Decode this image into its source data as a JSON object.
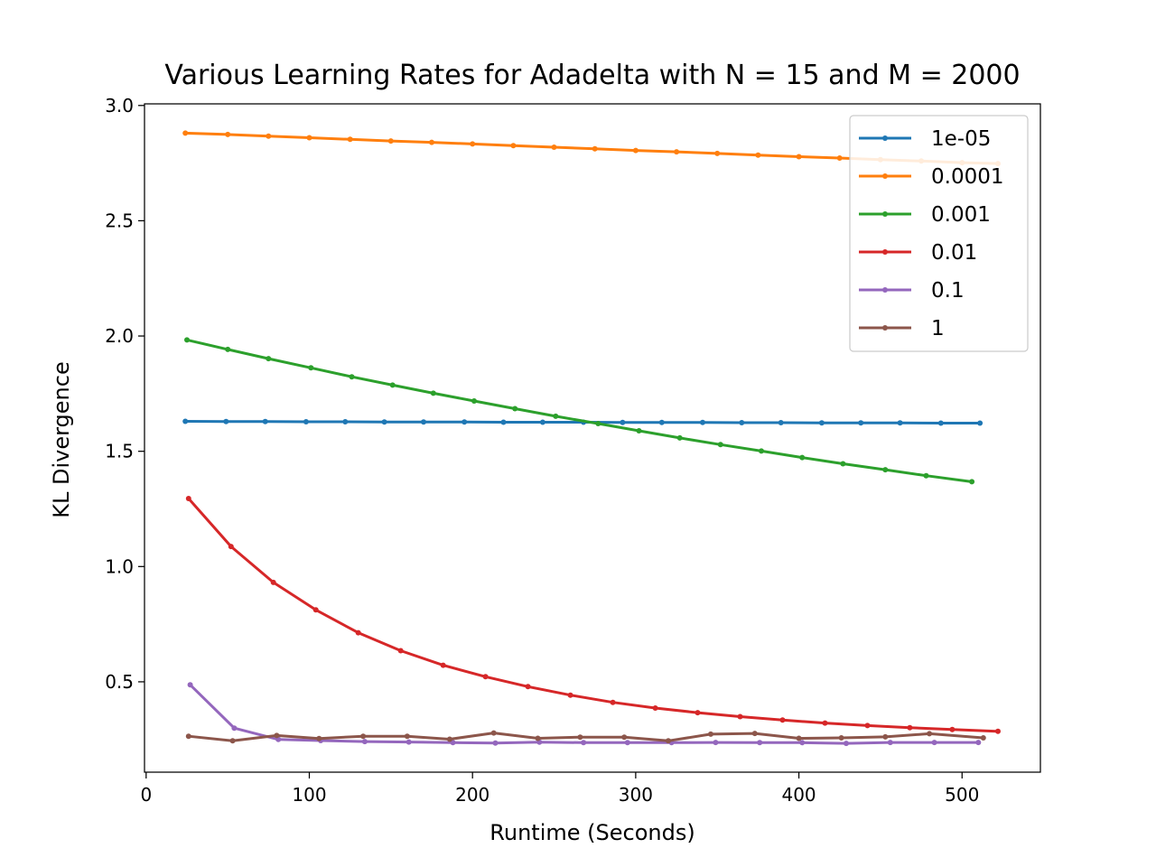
{
  "chart_data": {
    "type": "line",
    "title": "Various Learning Rates for Adadelta with N = 15 and M = 2000",
    "xlabel": "Runtime (Seconds)",
    "ylabel": "KL Divergence",
    "xlim": [
      -1,
      548
    ],
    "ylim": [
      0.108,
      3.007
    ],
    "xticks": [
      "0",
      "100",
      "200",
      "300",
      "400",
      "500"
    ],
    "yticks": [
      "0.5",
      "1.0",
      "1.5",
      "2.0",
      "2.5",
      "3.0"
    ],
    "xtick_values": [
      0,
      100,
      200,
      300,
      400,
      500
    ],
    "ytick_values": [
      0.5,
      1.0,
      1.5,
      2.0,
      2.5,
      3.0
    ],
    "grid": false,
    "legend_position": "upper right",
    "series": [
      {
        "name": "1e-05",
        "color": "#1f77b4",
        "x": [
          24,
          49,
          73,
          98,
          122,
          146,
          170,
          195,
          219,
          243,
          268,
          292,
          316,
          341,
          365,
          389,
          414,
          438,
          462,
          487,
          511
        ],
        "y": [
          1.63,
          1.629,
          1.629,
          1.628,
          1.628,
          1.627,
          1.627,
          1.627,
          1.626,
          1.626,
          1.626,
          1.625,
          1.625,
          1.625,
          1.624,
          1.624,
          1.623,
          1.623,
          1.623,
          1.622,
          1.622
        ]
      },
      {
        "name": "0.0001",
        "color": "#ff7f0e",
        "x": [
          24,
          50,
          75,
          100,
          125,
          150,
          175,
          200,
          225,
          250,
          275,
          300,
          325,
          350,
          375,
          400,
          425,
          450,
          475,
          500,
          522
        ],
        "y": [
          2.88,
          2.874,
          2.867,
          2.86,
          2.853,
          2.846,
          2.84,
          2.833,
          2.826,
          2.819,
          2.812,
          2.805,
          2.799,
          2.792,
          2.785,
          2.778,
          2.772,
          2.765,
          2.759,
          2.752,
          2.748
        ]
      },
      {
        "name": "0.001",
        "color": "#2ca02c",
        "x": [
          25,
          50,
          75,
          101,
          126,
          151,
          176,
          201,
          226,
          251,
          277,
          302,
          327,
          352,
          377,
          402,
          427,
          453,
          478,
          506
        ],
        "y": [
          1.983,
          1.942,
          1.902,
          1.862,
          1.823,
          1.787,
          1.752,
          1.718,
          1.685,
          1.652,
          1.62,
          1.589,
          1.558,
          1.529,
          1.501,
          1.473,
          1.446,
          1.42,
          1.394,
          1.368
        ]
      },
      {
        "name": "0.01",
        "color": "#d62728",
        "x": [
          26,
          52,
          78,
          104,
          130,
          156,
          182,
          208,
          234,
          260,
          286,
          312,
          338,
          364,
          390,
          416,
          442,
          468,
          494,
          522
        ],
        "y": [
          1.295,
          1.087,
          0.931,
          0.812,
          0.713,
          0.635,
          0.572,
          0.522,
          0.479,
          0.442,
          0.411,
          0.386,
          0.366,
          0.349,
          0.334,
          0.321,
          0.31,
          0.301,
          0.293,
          0.285
        ]
      },
      {
        "name": "0.1",
        "color": "#9467bd",
        "x": [
          27,
          54,
          81,
          107,
          134,
          161,
          188,
          214,
          241,
          268,
          295,
          322,
          349,
          376,
          402,
          429,
          456,
          483,
          510
        ],
        "y": [
          0.487,
          0.299,
          0.25,
          0.245,
          0.241,
          0.239,
          0.236,
          0.234,
          0.238,
          0.236,
          0.236,
          0.236,
          0.237,
          0.236,
          0.236,
          0.233,
          0.237,
          0.237,
          0.237
        ]
      },
      {
        "name": "1",
        "color": "#8c564b",
        "x": [
          26,
          53,
          80,
          106,
          133,
          160,
          186,
          213,
          240,
          266,
          293,
          320,
          346,
          373,
          400,
          426,
          453,
          480,
          513
        ],
        "y": [
          0.264,
          0.244,
          0.267,
          0.254,
          0.264,
          0.264,
          0.251,
          0.278,
          0.255,
          0.26,
          0.26,
          0.244,
          0.273,
          0.276,
          0.255,
          0.257,
          0.261,
          0.275,
          0.257
        ]
      }
    ]
  }
}
